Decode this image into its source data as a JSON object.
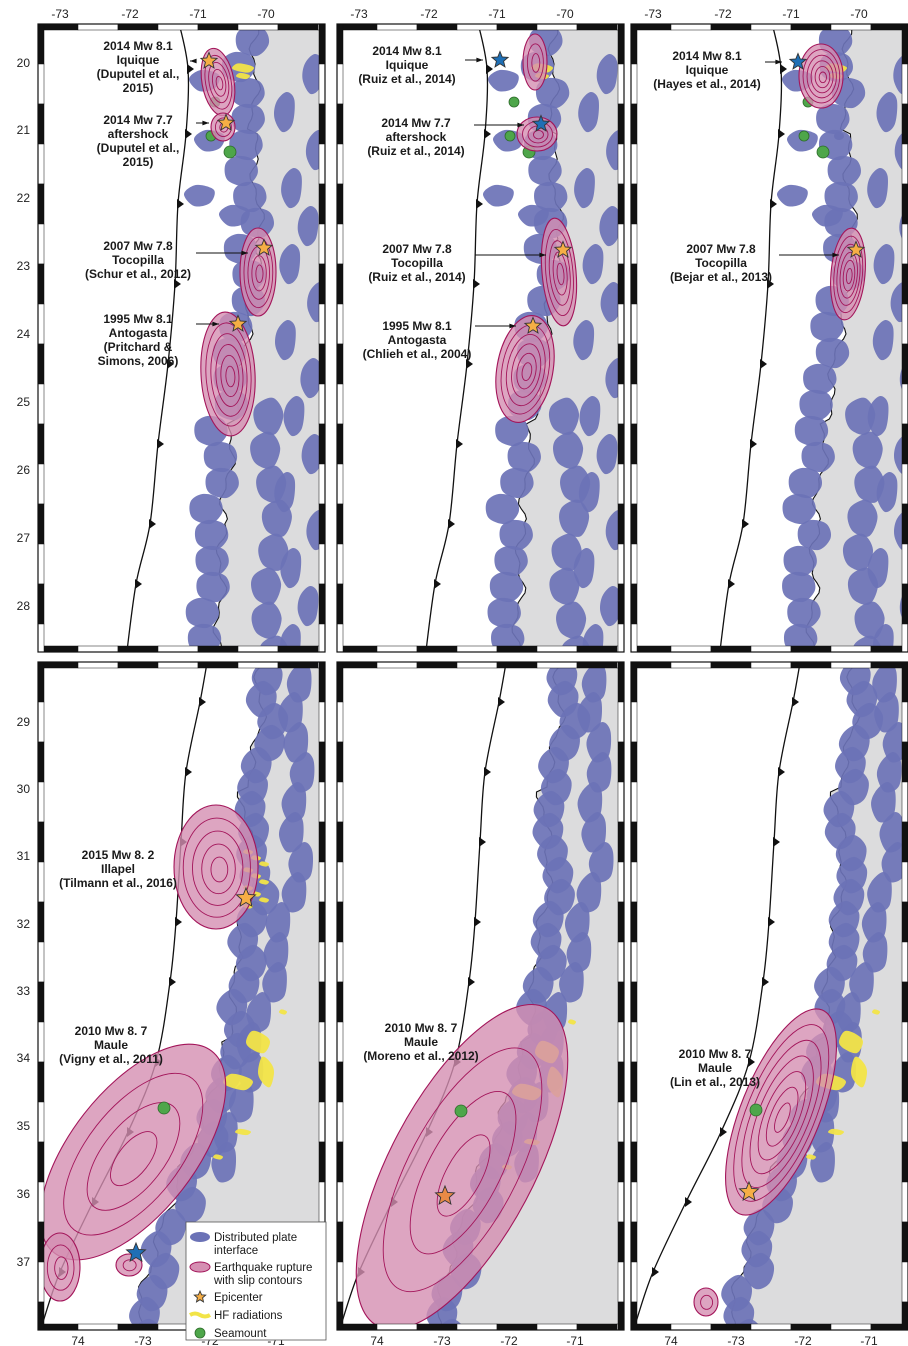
{
  "colors": {
    "land": "#dcdcdd",
    "interface": "#6b72b6",
    "rupture": "#d58fb2",
    "contour": "#a3155a",
    "epicenter_orange": "#f6ae45",
    "epicenter_blue": "#1f6fb5",
    "hf": "#f2e447",
    "seamount": "#4ea64a",
    "frame": "#111111"
  },
  "top_row": {
    "lon_ticks": [
      "-73",
      "-72",
      "-71",
      "-70"
    ],
    "lat_ticks": [
      "20",
      "21",
      "22",
      "23",
      "24",
      "25",
      "26",
      "27",
      "28"
    ],
    "panels": [
      {
        "labels": [
          {
            "lines": [
              "2014 Mw 8.1",
              "Iquique",
              "(Duputel et al.,",
              "2015)"
            ]
          },
          {
            "lines": [
              "2014 Mw 7.7",
              "aftershock",
              "(Duputel et al.,",
              "2015)"
            ]
          },
          {
            "lines": [
              "2007 Mw 7.8",
              "Tocopilla",
              "(Schur et al., 2012)"
            ]
          },
          {
            "lines": [
              "1995 Mw 8.1",
              "Antogasta",
              "(Pritchard &",
              "Simons, 2006)"
            ]
          }
        ]
      },
      {
        "labels": [
          {
            "lines": [
              "2014 Mw 8.1",
              "Iquique",
              "(Ruiz et al., 2014)"
            ]
          },
          {
            "lines": [
              "2014 Mw 7.7",
              "aftershock",
              "(Ruiz et al., 2014)"
            ]
          },
          {
            "lines": [
              "2007 Mw 7.8",
              "Tocopilla",
              "(Ruiz et al., 2014)"
            ]
          },
          {
            "lines": [
              "1995 Mw 8.1",
              "Antogasta",
              "(Chlieh et al., 2004)"
            ]
          }
        ]
      },
      {
        "labels": [
          {
            "lines": [
              "2014 Mw 8.1",
              "Iquique",
              "(Hayes et al., 2014)"
            ]
          },
          {
            "lines": [
              "2007 Mw 7.8",
              "Tocopilla",
              "(Bejar et al., 2013)"
            ]
          }
        ]
      }
    ]
  },
  "bottom_row": {
    "lat_ticks": [
      "29",
      "30",
      "31",
      "32",
      "33",
      "34",
      "35",
      "36",
      "37"
    ],
    "lon_ticks": [
      "74",
      "-73",
      "-72",
      "-71"
    ],
    "panels": [
      {
        "labels": [
          {
            "lines": [
              "2015 Mw 8. 2",
              "Illapel",
              "(Tilmann et al., 2016)"
            ]
          },
          {
            "lines": [
              "2010 Mw 8. 7",
              "Maule",
              "(Vigny et al., 2011)"
            ]
          }
        ]
      },
      {
        "labels": [
          {
            "lines": [
              "2010 Mw 8. 7",
              "Maule",
              "(Moreno et al., 2012)"
            ]
          }
        ]
      },
      {
        "labels": [
          {
            "lines": [
              "2010 Mw 8. 7",
              "Maule",
              "(Lin et al., 2013)"
            ]
          }
        ]
      }
    ]
  },
  "legend": {
    "items": [
      {
        "icon": "interface-swatch",
        "lines": [
          "Distributed plate",
          "interface"
        ]
      },
      {
        "icon": "rupture-swatch",
        "lines": [
          "Earthquake rupture",
          "with slip contours"
        ]
      },
      {
        "icon": "star-icon",
        "lines": [
          "Epicenter"
        ]
      },
      {
        "icon": "hf-swatch",
        "lines": [
          "HF radiations"
        ]
      },
      {
        "icon": "circle-icon",
        "lines": [
          "Seamount"
        ]
      }
    ]
  }
}
